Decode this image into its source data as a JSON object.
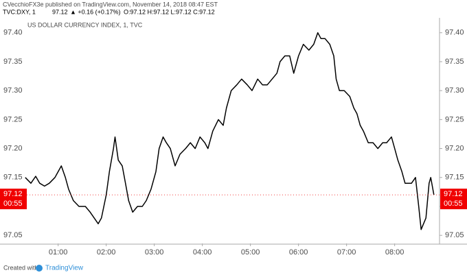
{
  "header": {
    "publisher": "CVecchioFX3e published on TradingView.com, November 14, 2018 08:47 EST",
    "symbol": "TVC:DXY, 1",
    "change": "▲ +0.16 (+0.17%)",
    "ohlc": "O:97.12 H:97.12 L:97.12 C:97.12"
  },
  "footer": {
    "created": "Created with",
    "brand": "TradingView"
  },
  "chart_data": {
    "type": "line",
    "title": "US DOLLAR CURRENCY INDEX, 1, TVC",
    "last_price": 97.12,
    "countdown": "00:55",
    "color": "#000000",
    "grid": false,
    "x": [
      19,
      26,
      32,
      37,
      43,
      49,
      56,
      64,
      69,
      73,
      79,
      86,
      94,
      100,
      105,
      110,
      114,
      120,
      124,
      129,
      131,
      135,
      140,
      144,
      148,
      153,
      159,
      165,
      170,
      176,
      182,
      186,
      191,
      195,
      200,
      206,
      212,
      219,
      225,
      231,
      237,
      243,
      247,
      253,
      260,
      266,
      270,
      276,
      283,
      289,
      296,
      302,
      309,
      315,
      321,
      327,
      333,
      337,
      343,
      349,
      354,
      360,
      366,
      373,
      379,
      384,
      388,
      393,
      399,
      404,
      407,
      411,
      417,
      424,
      429,
      433,
      437,
      441,
      447,
      453,
      459,
      465,
      470,
      476,
      480,
      484,
      489,
      493,
      497,
      501,
      506,
      510,
      513,
      516,
      519,
      523,
      525,
      529
    ],
    "series": [
      {
        "name": "DXY",
        "values": [
          97.15,
          97.14,
          97.152,
          97.14,
          97.135,
          97.14,
          97.15,
          97.17,
          97.15,
          97.13,
          97.11,
          97.1,
          97.1,
          97.09,
          97.08,
          97.07,
          97.08,
          97.12,
          97.16,
          97.2,
          97.22,
          97.18,
          97.17,
          97.14,
          97.11,
          97.09,
          97.1,
          97.1,
          97.11,
          97.13,
          97.16,
          97.2,
          97.22,
          97.21,
          97.2,
          97.17,
          97.19,
          97.2,
          97.21,
          97.2,
          97.22,
          97.21,
          97.2,
          97.23,
          97.25,
          97.24,
          97.27,
          97.3,
          97.31,
          97.32,
          97.31,
          97.3,
          97.32,
          97.31,
          97.31,
          97.32,
          97.33,
          97.35,
          97.36,
          97.36,
          97.33,
          97.36,
          97.38,
          97.37,
          97.38,
          97.4,
          97.39,
          97.39,
          97.38,
          97.36,
          97.32,
          97.3,
          97.3,
          97.29,
          97.27,
          97.26,
          97.24,
          97.23,
          97.21,
          97.21,
          97.2,
          97.21,
          97.21,
          97.22,
          97.2,
          97.18,
          97.16,
          97.14,
          97.14,
          97.14,
          97.15,
          97.1,
          97.06,
          97.07,
          97.08,
          97.14,
          97.15,
          97.12
        ]
      }
    ],
    "xlim": [
      -10,
      536
    ],
    "xticks": [
      {
        "value": 60,
        "label": "01:00"
      },
      {
        "value": 120,
        "label": "02:00"
      },
      {
        "value": 180,
        "label": "03:00"
      },
      {
        "value": 240,
        "label": "04:00"
      },
      {
        "value": 300,
        "label": "05:00"
      },
      {
        "value": 360,
        "label": "06:00"
      },
      {
        "value": 420,
        "label": "07:00"
      },
      {
        "value": 480,
        "label": "08:00"
      }
    ],
    "ylim": [
      97.036,
      97.421
    ],
    "yticks": [
      97.05,
      {
        "value": 97.1,
        "label": "97.10"
      },
      97.15,
      {
        "value": 97.2,
        "label": "97.20"
      },
      97.25,
      {
        "value": 97.3,
        "label": "97.30"
      },
      97.35,
      {
        "value": 97.4,
        "label": "97.40"
      }
    ]
  }
}
